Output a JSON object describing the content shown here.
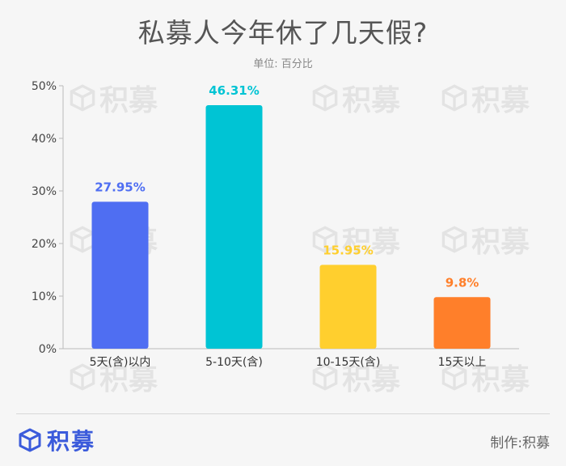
{
  "header": {
    "title": "私募人今年休了几天假?",
    "unit": "单位: 百分比"
  },
  "watermark": {
    "text": "积募"
  },
  "footer": {
    "brand": "积募",
    "credit": "制作:积募"
  },
  "chart_data": {
    "type": "bar",
    "categories": [
      "5天(含)以内",
      "5-10天(含)",
      "10-15天(含)",
      "15天以上"
    ],
    "values": [
      27.95,
      46.31,
      15.95,
      9.8
    ],
    "value_labels": [
      "27.95%",
      "46.31%",
      "15.95%",
      "9.8%"
    ],
    "colors": [
      "#4f6ef2",
      "#00c4d4",
      "#ffcf2e",
      "#ff7f2a"
    ],
    "yticks": [
      "0%",
      "10%",
      "20%",
      "30%",
      "40%",
      "50%"
    ],
    "ylim": [
      0,
      50
    ],
    "grid": false,
    "legend": "none"
  }
}
